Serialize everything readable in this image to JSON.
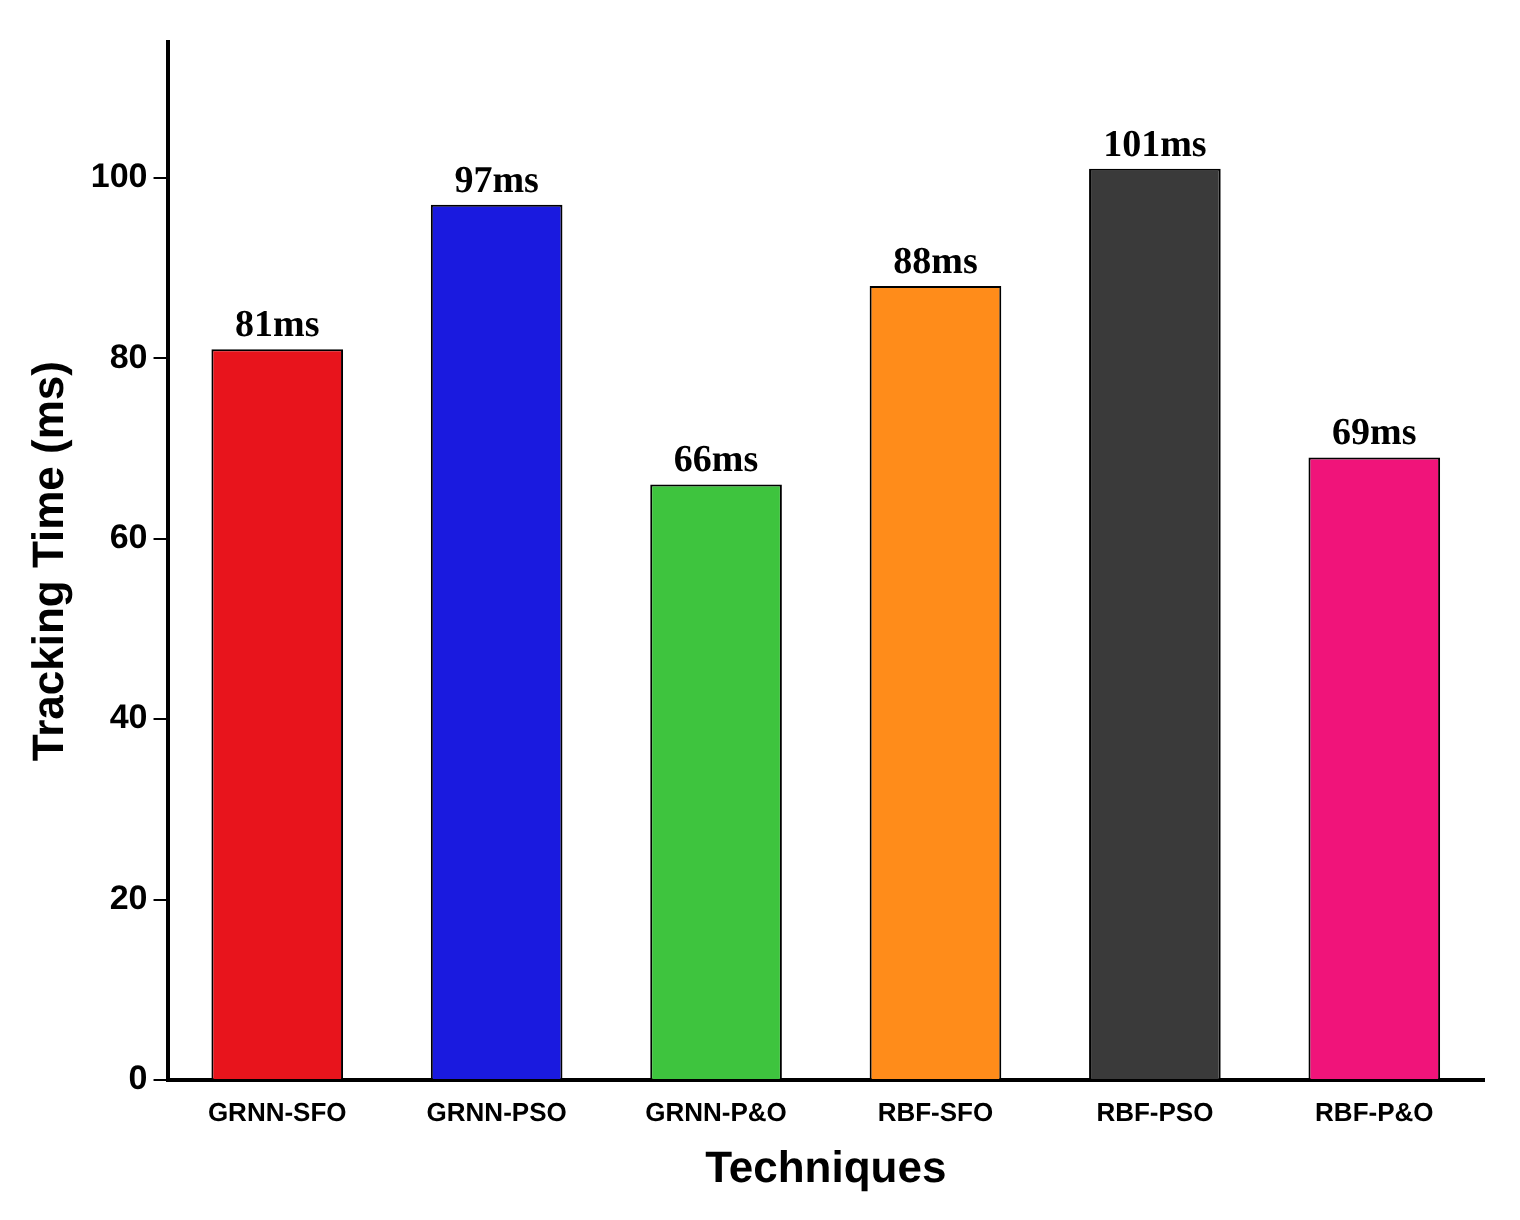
{
  "chart_data": {
    "type": "bar",
    "xlabel": "Techniques",
    "ylabel": "Tracking Time (ms)",
    "categories": [
      "GRNN-SFO",
      "GRNN-PSO",
      "GRNN-P&O",
      "RBF-SFO",
      "RBF-PSO",
      "RBF-P&O"
    ],
    "values": [
      81,
      97,
      66,
      88,
      101,
      69
    ],
    "colors": [
      "#e8141c",
      "#1a1adf",
      "#3ec43e",
      "#ff8c1a",
      "#3a3a3a",
      "#f0147a"
    ],
    "value_labels": [
      "81ms",
      "97ms",
      "66ms",
      "88ms",
      "101ms",
      "69ms"
    ],
    "ylim": [
      0,
      115
    ],
    "yticks": [
      0,
      20,
      40,
      60,
      80,
      100
    ],
    "grid": false,
    "legend": false
  }
}
